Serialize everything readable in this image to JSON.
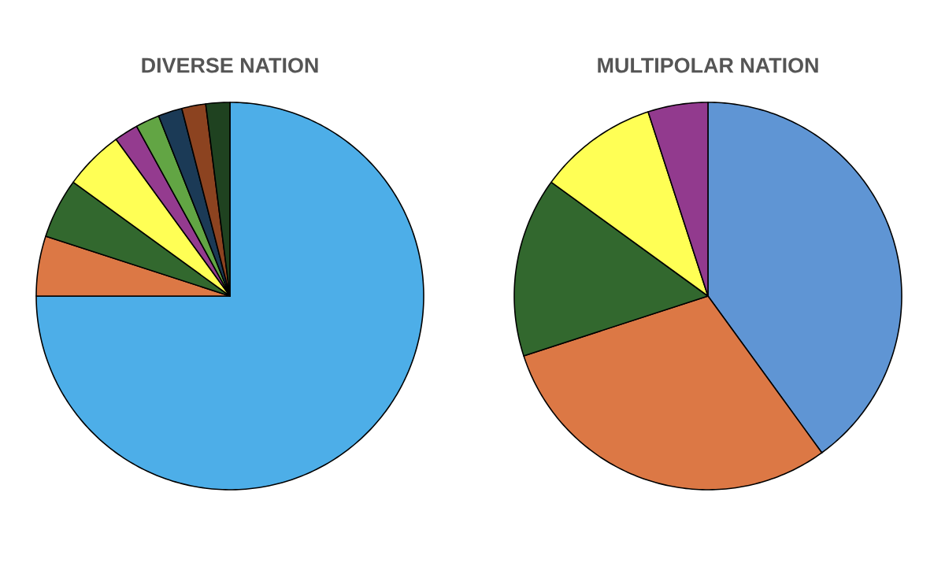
{
  "chart_data": [
    {
      "type": "pie",
      "title": "DIVERSE NATION",
      "categories": [
        null,
        null,
        null,
        null,
        null,
        null,
        null,
        null,
        null
      ],
      "values": [
        75,
        5,
        5,
        5,
        2,
        2,
        2,
        2,
        2
      ],
      "colors": [
        "#4daee8",
        "#dc7845",
        "#32682e",
        "#ffff55",
        "#943b8f",
        "#62a544",
        "#1b3a56",
        "#8c4320",
        "#1f4220"
      ]
    },
    {
      "type": "pie",
      "title": "MULTIPOLAR NATION",
      "categories": [
        null,
        null,
        null,
        null,
        null
      ],
      "values": [
        40,
        30,
        15,
        10,
        5
      ],
      "colors": [
        "#5f95d4",
        "#dc7845",
        "#32682e",
        "#ffff55",
        "#923a8e"
      ]
    }
  ]
}
